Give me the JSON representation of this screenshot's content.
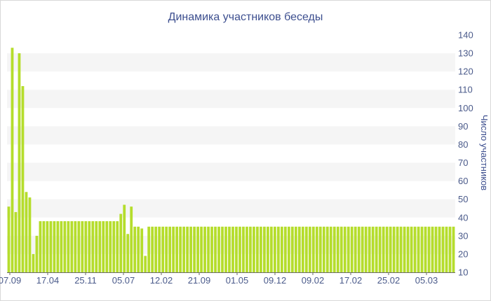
{
  "chart_data": {
    "type": "bar",
    "title": "Динамика участников беседы",
    "ylabel": "Число участников",
    "xlabel": "",
    "ylim": [
      10,
      140
    ],
    "y_ticks": [
      10,
      20,
      30,
      40,
      50,
      60,
      70,
      80,
      90,
      100,
      110,
      120,
      130,
      140
    ],
    "x_tick_labels": [
      "07.09",
      "17.04",
      "25.11",
      "05.07",
      "12.02",
      "21.09",
      "01.05",
      "09.12",
      "09.02",
      "17.02",
      "25.02",
      "05.03"
    ],
    "grid": "alternating horizontal bands",
    "bar_color": "#b5dd2c",
    "values": [
      46,
      133,
      43,
      130,
      112,
      54,
      51,
      20,
      30,
      38,
      38,
      38,
      38,
      38,
      38,
      38,
      38,
      38,
      38,
      38,
      38,
      38,
      38,
      38,
      38,
      38,
      38,
      38,
      38,
      38,
      38,
      38,
      42,
      47,
      31,
      46,
      35,
      35,
      34,
      19,
      35,
      35,
      35,
      35,
      35,
      35,
      35,
      35,
      35,
      35,
      35,
      35,
      35,
      35,
      35,
      35,
      35,
      35,
      35,
      35,
      35,
      35,
      35,
      35,
      35,
      35,
      35,
      35,
      35,
      35,
      35,
      35,
      35,
      35,
      35,
      35,
      35,
      35,
      35,
      35,
      35,
      35,
      35,
      35,
      35,
      35,
      35,
      35,
      35,
      35,
      35,
      35,
      35,
      35,
      35,
      35,
      35,
      35,
      35,
      35,
      35,
      35,
      35,
      35,
      35,
      35,
      35,
      35,
      35,
      35,
      35,
      35,
      35,
      35,
      35,
      35,
      35,
      35,
      35,
      35,
      35,
      35,
      35,
      35,
      35,
      35,
      35,
      35
    ]
  }
}
